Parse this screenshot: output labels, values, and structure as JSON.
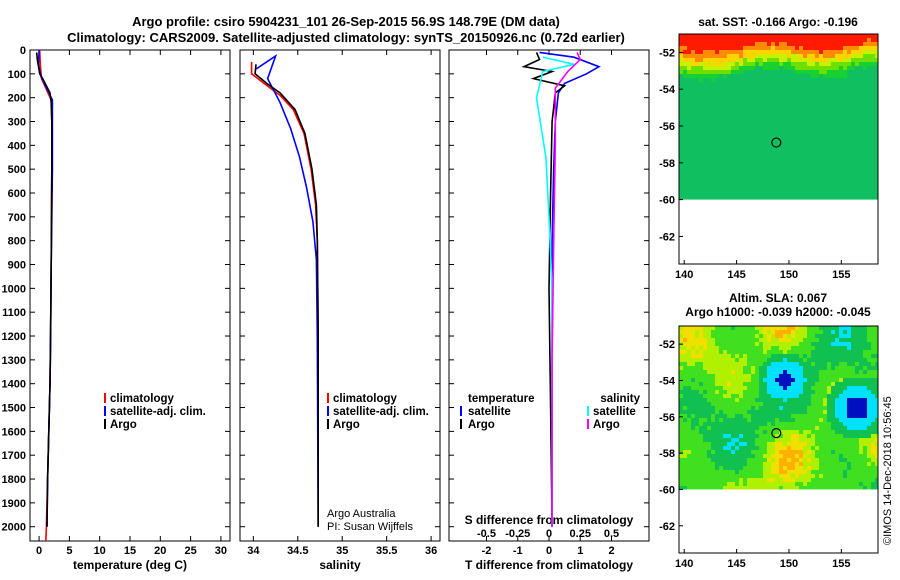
{
  "title_line1": "Argo profile: csiro 5904231_101 26-Sep-2015 56.9S 148.79E (DM data)",
  "title_line2": "Climatology: CARS2009. Satellite-adjusted climatology: synTS_20150926.nc (0.72d earlier)",
  "footer_note": "©IMOS 14-Dec-2018 10:56:45",
  "credit_line1": "Argo Australia",
  "credit_line2": "PI: Susan Wijffels",
  "colors": {
    "climatology": "#ff0000",
    "satellite": "#0000ff",
    "argo": "#000000",
    "s_satellite": "#00ffff",
    "s_argo": "#ff00ff"
  },
  "chart_data": [
    {
      "type": "line",
      "xlabel": "temperature (deg C)",
      "ylabel": "",
      "xlim": [
        -1.5,
        31.5
      ],
      "ylim": [
        2060,
        0
      ],
      "xticks": [
        0,
        5,
        10,
        15,
        20,
        25,
        30
      ],
      "yticks": [
        0,
        100,
        200,
        300,
        400,
        500,
        600,
        700,
        800,
        900,
        1000,
        1100,
        1200,
        1300,
        1400,
        1500,
        1600,
        1700,
        1800,
        1900,
        2000
      ],
      "legend": {
        "position": "lower-right",
        "entries": [
          "climatology",
          "satellite-adj. clim.",
          "Argo"
        ]
      },
      "series": [
        {
          "name": "climatology",
          "color": "#ff0000",
          "points": [
            [
              0.1,
              0
            ],
            [
              0.2,
              60
            ],
            [
              0.4,
              120
            ],
            [
              2.0,
              210
            ],
            [
              2.1,
              300
            ],
            [
              2.1,
              500
            ],
            [
              2.05,
              700
            ],
            [
              2.0,
              900
            ],
            [
              1.9,
              1200
            ],
            [
              1.8,
              1400
            ],
            [
              1.6,
              1600
            ],
            [
              1.4,
              1800
            ],
            [
              1.2,
              2000
            ],
            [
              1.1,
              2060
            ]
          ]
        },
        {
          "name": "satellite-adj. clim.",
          "color": "#0000ff",
          "points": [
            [
              0.0,
              0
            ],
            [
              -0.1,
              60
            ],
            [
              0.3,
              110
            ],
            [
              2.2,
              210
            ],
            [
              2.2,
              300
            ],
            [
              2.2,
              500
            ],
            [
              2.1,
              700
            ],
            [
              2.0,
              900
            ],
            [
              1.9,
              1200
            ],
            [
              1.8,
              1400
            ],
            [
              1.6,
              1600
            ],
            [
              1.4,
              1800
            ],
            [
              1.3,
              2000
            ]
          ]
        },
        {
          "name": "Argo",
          "color": "#000000",
          "points": [
            [
              -0.4,
              10
            ],
            [
              -0.3,
              40
            ],
            [
              0.1,
              100
            ],
            [
              0.6,
              120
            ],
            [
              1.8,
              180
            ],
            [
              2.0,
              220
            ],
            [
              2.1,
              300
            ],
            [
              2.1,
              500
            ],
            [
              2.05,
              700
            ],
            [
              2.0,
              900
            ],
            [
              1.9,
              1200
            ],
            [
              1.8,
              1400
            ],
            [
              1.6,
              1600
            ],
            [
              1.4,
              1800
            ],
            [
              1.3,
              2000
            ]
          ]
        }
      ]
    },
    {
      "type": "line",
      "xlabel": "salinity",
      "ylabel": "",
      "xlim": [
        33.85,
        36.1
      ],
      "ylim": [
        2060,
        0
      ],
      "xticks": [
        34,
        34.5,
        35,
        35.5,
        36
      ],
      "xticklabels": [
        "34",
        "34.5",
        "35",
        "35.5",
        "36"
      ],
      "legend": {
        "position": "lower-right",
        "entries": [
          "climatology",
          "satellite-adj. clim.",
          "Argo"
        ]
      },
      "series": [
        {
          "name": "climatology",
          "color": "#ff0000",
          "points": [
            [
              33.98,
              50
            ],
            [
              33.98,
              100
            ],
            [
              34.12,
              140
            ],
            [
              34.3,
              190
            ],
            [
              34.45,
              250
            ],
            [
              34.57,
              350
            ],
            [
              34.65,
              500
            ],
            [
              34.7,
              650
            ],
            [
              34.72,
              800
            ],
            [
              34.73,
              1200
            ],
            [
              34.73,
              2000
            ]
          ]
        },
        {
          "name": "satellite-adj. clim.",
          "color": "#0000ff",
          "points": [
            [
              34.03,
              80
            ],
            [
              34.25,
              25
            ],
            [
              34.16,
              120
            ],
            [
              34.3,
              220
            ],
            [
              34.42,
              330
            ],
            [
              34.52,
              450
            ],
            [
              34.6,
              580
            ],
            [
              34.67,
              720
            ],
            [
              34.71,
              880
            ],
            [
              34.72,
              1200
            ],
            [
              34.73,
              2000
            ]
          ]
        },
        {
          "name": "Argo",
          "color": "#000000",
          "points": [
            [
              34.03,
              60
            ],
            [
              34.02,
              100
            ],
            [
              34.15,
              140
            ],
            [
              34.3,
              180
            ],
            [
              34.47,
              250
            ],
            [
              34.58,
              350
            ],
            [
              34.66,
              500
            ],
            [
              34.71,
              650
            ],
            [
              34.72,
              800
            ],
            [
              34.73,
              1200
            ],
            [
              34.73,
              2000
            ]
          ]
        }
      ]
    },
    {
      "type": "line",
      "xlabel": "T difference from climatology",
      "top_xlabel": "S difference from climatology",
      "ylabel": "",
      "xlim": [
        -3.2,
        3.2
      ],
      "ylim": [
        2060,
        0
      ],
      "xticks": [
        -2,
        -1,
        0,
        1,
        2
      ],
      "top_xticks": [
        -0.5,
        -0.25,
        0,
        0.25,
        0.5
      ],
      "top_xticklabels": [
        "-0.5",
        "-0.25",
        "0",
        "0.25",
        "0.5"
      ],
      "legend": {
        "position": "lower",
        "entries": [
          "temperature",
          "satellite",
          "Argo",
          "salinity",
          "satellite",
          "Argo"
        ]
      },
      "series": [
        {
          "name": "satellite",
          "color": "#0000ff",
          "points": [
            [
              -0.3,
              10
            ],
            [
              0.8,
              30
            ],
            [
              1.6,
              70
            ],
            [
              1.2,
              100
            ],
            [
              0.5,
              140
            ],
            [
              0.3,
              180
            ],
            [
              0.2,
              300
            ],
            [
              0.15,
              500
            ],
            [
              0.1,
              800
            ],
            [
              0.1,
              1200
            ],
            [
              0.1,
              2000
            ]
          ]
        },
        {
          "name": "Argo",
          "color": "#000000",
          "points": [
            [
              -0.4,
              10
            ],
            [
              -0.3,
              40
            ],
            [
              -0.8,
              70
            ],
            [
              0.1,
              90
            ],
            [
              -0.5,
              120
            ],
            [
              0.5,
              150
            ],
            [
              0.2,
              180
            ],
            [
              0.1,
              300
            ],
            [
              0.05,
              600
            ],
            [
              0.0,
              1000
            ],
            [
              0.05,
              1500
            ],
            [
              0.1,
              2000
            ]
          ]
        },
        {
          "name": "satellite",
          "color": "#00ffff",
          "points": [
            [
              -0.2,
              30
            ],
            [
              0.8,
              60
            ],
            [
              -0.2,
              90
            ],
            [
              -0.4,
              200
            ],
            [
              -0.1,
              450
            ],
            [
              0.0,
              700
            ],
            [
              0.1,
              1000
            ],
            [
              0.1,
              2000
            ]
          ]
        },
        {
          "name": "Argo",
          "color": "#ff00ff",
          "points": [
            [
              0.9,
              10
            ],
            [
              1.0,
              40
            ],
            [
              0.6,
              90
            ],
            [
              0.2,
              160
            ],
            [
              0.2,
              400
            ],
            [
              0.15,
              800
            ],
            [
              0.1,
              1300
            ],
            [
              0.1,
              2000
            ]
          ]
        }
      ]
    },
    {
      "type": "heatmap",
      "title": "sat. SST: -0.166 Argo: -0.196",
      "xlim": [
        139.5,
        158.5
      ],
      "ylim": [
        -63.5,
        -51
      ],
      "xticks": [
        140,
        145,
        150,
        155
      ],
      "yticks": [
        -52,
        -54,
        -56,
        -58,
        -60,
        -62
      ],
      "marker": {
        "lon": 148.79,
        "lat": -56.9
      }
    },
    {
      "type": "heatmap",
      "title_line1": "Altim. SLA: 0.067",
      "title_line2": "Argo h1000: -0.039 h2000: -0.045",
      "xlim": [
        139.5,
        158.5
      ],
      "ylim": [
        -63.5,
        -51
      ],
      "xticks": [
        140,
        145,
        150,
        155
      ],
      "yticks": [
        -52,
        -54,
        -56,
        -58,
        -60,
        -62
      ],
      "marker": {
        "lon": 148.79,
        "lat": -56.9
      }
    }
  ]
}
